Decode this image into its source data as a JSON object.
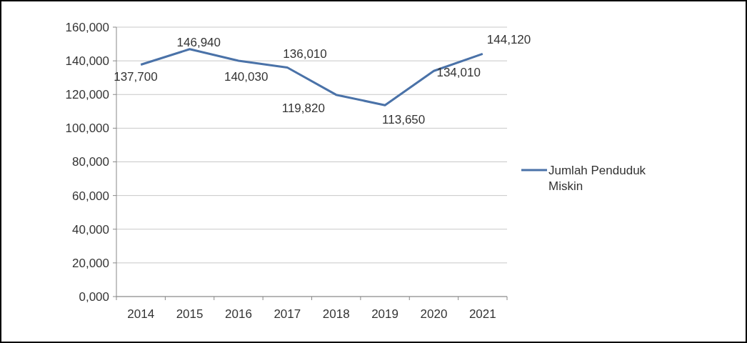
{
  "chart_data": {
    "type": "line",
    "categories": [
      "2014",
      "2015",
      "2016",
      "2017",
      "2018",
      "2019",
      "2020",
      "2021"
    ],
    "series": [
      {
        "name": "Jumlah Penduduk Miskin",
        "color": "#4a72a8",
        "values": [
          137700,
          146940,
          140030,
          136010,
          119820,
          113650,
          134010,
          144120
        ],
        "value_labels": [
          "137,700",
          "146,940",
          "140,030",
          "136,010",
          "119,820",
          "113,650",
          "134,010",
          "144,120"
        ]
      }
    ],
    "ylim": [
      0,
      160000
    ],
    "yticks": [
      {
        "value": 0,
        "label": "0,000"
      },
      {
        "value": 20000,
        "label": "20,000"
      },
      {
        "value": 40000,
        "label": "40,000"
      },
      {
        "value": 60000,
        "label": "60,000"
      },
      {
        "value": 80000,
        "label": "80,000"
      },
      {
        "value": 100000,
        "label": "100,000"
      },
      {
        "value": 120000,
        "label": "120,000"
      },
      {
        "value": 140000,
        "label": "140,000"
      },
      {
        "value": 160000,
        "label": "160,000"
      }
    ],
    "grid": "y",
    "legend": "right",
    "marker": "none",
    "line_style": "solid"
  }
}
